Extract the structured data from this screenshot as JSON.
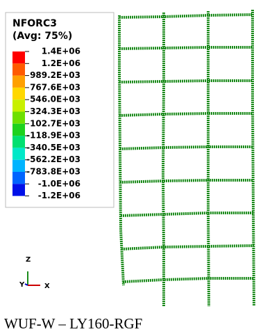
{
  "legend": {
    "title": "NFORC3",
    "subtitle": "(Avg: 75%)",
    "labels": [
      "1.4E+06",
      "1.2E+06",
      "989.2E+03",
      "767.6E+03",
      "546.0E+03",
      "324.3E+03",
      "102.7E+03",
      "-118.9E+03",
      "-340.5E+03",
      "-562.2E+03",
      "-783.8E+03",
      "-1.0E+06",
      "-1.2E+06"
    ],
    "colors": [
      "#ff0000",
      "#ff5a00",
      "#ffa000",
      "#ffd800",
      "#c8f000",
      "#6ee000",
      "#1ed21e",
      "#00e070",
      "#00e8c8",
      "#00b4ff",
      "#0064ff",
      "#0010e8"
    ]
  },
  "triad": {
    "z": "Z",
    "y": "Y",
    "x": "X"
  },
  "caption": "WUF-W – LY160-RGF"
}
